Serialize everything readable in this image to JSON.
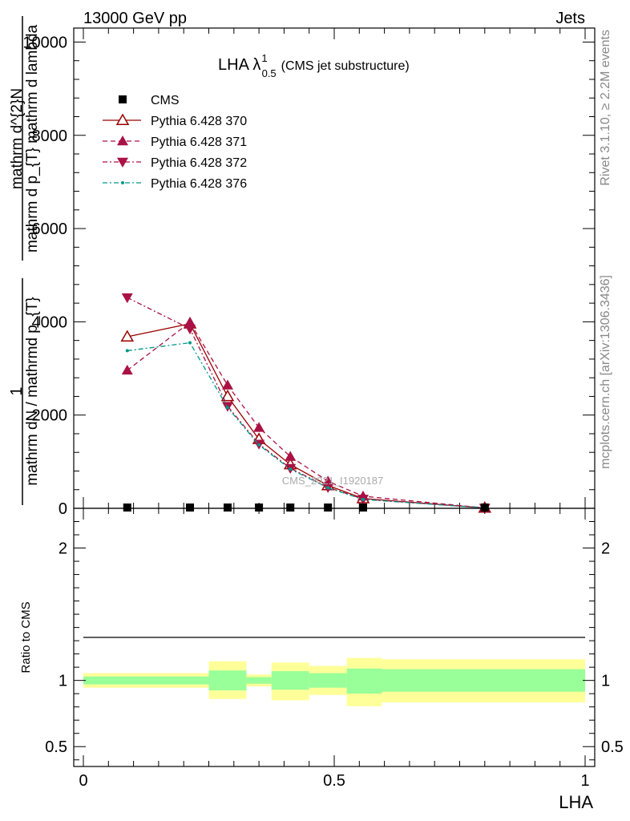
{
  "header": {
    "energy_label": "13000 GeV pp",
    "process_label": "Jets"
  },
  "side_labels": {
    "rivet": "Rivet 3.1.10, ≥ 2.2M events",
    "mcplots": "mcplots.cern.ch [arXiv:1306.3436]"
  },
  "watermark": "CMS_2021_I1920187",
  "chart_data": [
    {
      "type": "line",
      "panel": "main",
      "title": {
        "main": "LHA λ",
        "sup": "1",
        "sub": "0.5",
        "suffix": "(CMS jet substructure)"
      },
      "ylabel": {
        "numerator_prefix": "1",
        "denominator": "mathrm dN / mathrmd p_{T}",
        "numerator_main": "mathrm d^{2}N",
        "denominator_main": "mathrm d p_{T} mathrm d lambda"
      },
      "xlim": [
        0,
        1
      ],
      "ylim": [
        0,
        10300
      ],
      "y_ticks": [
        {
          "value": 0,
          "label": "0"
        },
        {
          "value": 2000,
          "label": "2000"
        },
        {
          "value": 4000,
          "label": "4000"
        },
        {
          "value": 6000,
          "label": "6000"
        },
        {
          "value": 8000,
          "label": "8000"
        },
        {
          "value": 10000,
          "label": "10000"
        }
      ],
      "series": [
        {
          "name": "CMS",
          "style": "data",
          "color": "#000000",
          "x": [
            0.0875,
            0.2125,
            0.2875,
            0.35,
            0.4125,
            0.4875,
            0.5575,
            0.8
          ],
          "y": [
            5,
            5,
            4,
            3,
            2,
            2,
            1,
            0
          ]
        },
        {
          "name": "Pythia 6.428 370",
          "style": "solid",
          "marker": "triangle-up-open",
          "color": "#990000",
          "x": [
            0.0875,
            0.2125,
            0.2875,
            0.35,
            0.4125,
            0.4875,
            0.5575,
            0.8
          ],
          "y": [
            3680,
            3960,
            2400,
            1480,
            940,
            490,
            210,
            8
          ]
        },
        {
          "name": "Pythia 6.428 371",
          "style": "dashed",
          "marker": "triangle-up",
          "color": "#aa1144",
          "x": [
            0.0875,
            0.2125,
            0.2875,
            0.35,
            0.4125,
            0.4875,
            0.5575,
            0.8
          ],
          "y": [
            2960,
            3990,
            2640,
            1730,
            1110,
            580,
            260,
            8
          ]
        },
        {
          "name": "Pythia 6.428 372",
          "style": "dash-dot",
          "marker": "triangle-down",
          "color": "#aa1144",
          "x": [
            0.0875,
            0.2125,
            0.2875,
            0.35,
            0.4125,
            0.4875,
            0.5575,
            0.8
          ],
          "y": [
            4520,
            3850,
            2190,
            1380,
            860,
            450,
            200,
            7
          ]
        },
        {
          "name": "Pythia 6.428 376",
          "style": "dash-dot",
          "marker": "dot",
          "color": "#009988",
          "x": [
            0.0875,
            0.2125,
            0.2875,
            0.35,
            0.4125,
            0.4875,
            0.5575,
            0.8
          ],
          "y": [
            3380,
            3550,
            2160,
            1360,
            840,
            440,
            190,
            7
          ]
        }
      ]
    },
    {
      "type": "area",
      "panel": "ratio",
      "ylabel": "Ratio to CMS",
      "xlabel": "LHA",
      "xlim": [
        0,
        1
      ],
      "ylim": [
        0.35,
        2.3
      ],
      "y_ticks": [
        {
          "value": 0.5,
          "label": "0.5"
        },
        {
          "value": 1,
          "label": "1"
        },
        {
          "value": 2,
          "label": "2"
        }
      ],
      "x_ticks": [
        {
          "value": 0,
          "label": "0"
        },
        {
          "value": 0.5,
          "label": "0.5"
        },
        {
          "value": 1,
          "label": "1"
        }
      ],
      "bins": [
        {
          "lo": 0.0,
          "hi": 0.25,
          "stat_lo": 0.97,
          "stat_hi": 1.03,
          "tot_lo": 0.945,
          "tot_hi": 1.055
        },
        {
          "lo": 0.25,
          "hi": 0.325,
          "stat_lo": 0.925,
          "stat_hi": 1.075,
          "tot_lo": 0.86,
          "tot_hi": 1.145
        },
        {
          "lo": 0.325,
          "hi": 0.375,
          "stat_lo": 0.975,
          "stat_hi": 1.025,
          "tot_lo": 0.955,
          "tot_hi": 1.045
        },
        {
          "lo": 0.375,
          "hi": 0.45,
          "stat_lo": 0.93,
          "stat_hi": 1.07,
          "tot_lo": 0.85,
          "tot_hi": 1.135
        },
        {
          "lo": 0.45,
          "hi": 0.525,
          "stat_lo": 0.945,
          "stat_hi": 1.055,
          "tot_lo": 0.89,
          "tot_hi": 1.11
        },
        {
          "lo": 0.525,
          "hi": 0.595,
          "stat_lo": 0.9,
          "stat_hi": 1.09,
          "tot_lo": 0.805,
          "tot_hi": 1.17
        },
        {
          "lo": 0.595,
          "hi": 1.0,
          "stat_lo": 0.915,
          "stat_hi": 1.085,
          "tot_lo": 0.835,
          "tot_hi": 1.16
        }
      ],
      "band_colors": {
        "stat": "#99ff99",
        "total": "#ffff99"
      }
    }
  ]
}
